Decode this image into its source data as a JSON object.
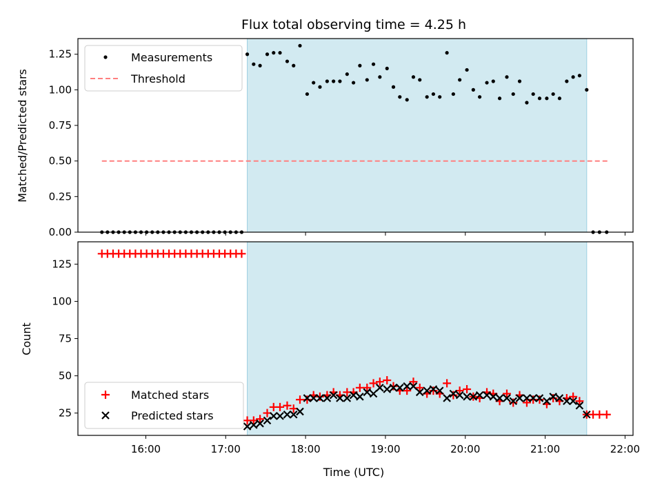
{
  "chart_data": [
    {
      "type": "scatter",
      "title": "Flux total observing time = 4.25 h",
      "xlabel": "",
      "ylabel": "Matched/Predicted stars",
      "ylim": [
        0,
        1.36
      ],
      "xlim": [
        15.15,
        22.1
      ],
      "yticks": [
        0,
        0.25,
        0.5,
        0.75,
        1.0,
        1.25
      ],
      "ytick_labels": [
        "0.00",
        "0.25",
        "0.50",
        "0.75",
        "1.00",
        "1.25"
      ],
      "shaded_interval": [
        17.27,
        21.52
      ],
      "legend_position": "top-left",
      "threshold": {
        "name": "Threshold",
        "color": "#ff7f7f",
        "value": 0.5,
        "x": [
          15.45,
          21.78
        ]
      },
      "series": [
        {
          "name": "Measurements",
          "color": "#000000",
          "points": [
            [
              15.45,
              0
            ],
            [
              15.52,
              0
            ],
            [
              15.59,
              0
            ],
            [
              15.66,
              0
            ],
            [
              15.73,
              0
            ],
            [
              15.8,
              0
            ],
            [
              15.87,
              0
            ],
            [
              15.94,
              0
            ],
            [
              16.01,
              0
            ],
            [
              16.08,
              0
            ],
            [
              16.15,
              0
            ],
            [
              16.22,
              0
            ],
            [
              16.29,
              0
            ],
            [
              16.36,
              0
            ],
            [
              16.43,
              0
            ],
            [
              16.5,
              0
            ],
            [
              16.57,
              0
            ],
            [
              16.64,
              0
            ],
            [
              16.71,
              0
            ],
            [
              16.78,
              0
            ],
            [
              16.85,
              0
            ],
            [
              16.92,
              0
            ],
            [
              16.99,
              0
            ],
            [
              17.06,
              0
            ],
            [
              17.13,
              0
            ],
            [
              17.2,
              0
            ],
            [
              17.27,
              1.25
            ],
            [
              17.35,
              1.18
            ],
            [
              17.43,
              1.17
            ],
            [
              17.52,
              1.25
            ],
            [
              17.6,
              1.26
            ],
            [
              17.68,
              1.26
            ],
            [
              17.77,
              1.2
            ],
            [
              17.85,
              1.17
            ],
            [
              17.93,
              1.31
            ],
            [
              18.02,
              0.97
            ],
            [
              18.1,
              1.05
            ],
            [
              18.18,
              1.02
            ],
            [
              18.27,
              1.06
            ],
            [
              18.35,
              1.06
            ],
            [
              18.43,
              1.06
            ],
            [
              18.52,
              1.11
            ],
            [
              18.6,
              1.05
            ],
            [
              18.68,
              1.17
            ],
            [
              18.77,
              1.07
            ],
            [
              18.85,
              1.18
            ],
            [
              18.93,
              1.09
            ],
            [
              19.02,
              1.15
            ],
            [
              19.1,
              1.02
            ],
            [
              19.18,
              0.95
            ],
            [
              19.27,
              0.93
            ],
            [
              19.35,
              1.09
            ],
            [
              19.43,
              1.07
            ],
            [
              19.52,
              0.95
            ],
            [
              19.6,
              0.97
            ],
            [
              19.68,
              0.95
            ],
            [
              19.77,
              1.26
            ],
            [
              19.85,
              0.97
            ],
            [
              19.93,
              1.07
            ],
            [
              20.02,
              1.14
            ],
            [
              20.1,
              1.0
            ],
            [
              20.18,
              0.95
            ],
            [
              20.27,
              1.05
            ],
            [
              20.35,
              1.06
            ],
            [
              20.43,
              0.94
            ],
            [
              20.52,
              1.09
            ],
            [
              20.6,
              0.97
            ],
            [
              20.68,
              1.06
            ],
            [
              20.77,
              0.91
            ],
            [
              20.85,
              0.97
            ],
            [
              20.93,
              0.94
            ],
            [
              21.02,
              0.94
            ],
            [
              21.1,
              0.97
            ],
            [
              21.18,
              0.94
            ],
            [
              21.27,
              1.06
            ],
            [
              21.35,
              1.09
            ],
            [
              21.43,
              1.1
            ],
            [
              21.52,
              1.0
            ],
            [
              21.6,
              0
            ],
            [
              21.68,
              0
            ],
            [
              21.77,
              0
            ]
          ]
        }
      ]
    },
    {
      "type": "scatter",
      "title": "",
      "xlabel": "Time (UTC)",
      "ylabel": "Count",
      "ylim": [
        10,
        140
      ],
      "xlim": [
        15.15,
        22.1
      ],
      "yticks": [
        25,
        50,
        75,
        100,
        125
      ],
      "ytick_labels": [
        "25",
        "50",
        "75",
        "100",
        "125"
      ],
      "xticks": [
        16,
        17,
        18,
        19,
        20,
        21,
        22
      ],
      "xtick_labels": [
        "16:00",
        "17:00",
        "18:00",
        "19:00",
        "20:00",
        "21:00",
        "22:00"
      ],
      "shaded_interval": [
        17.27,
        21.52
      ],
      "legend_position": "bottom-left",
      "series": [
        {
          "name": "Matched stars",
          "marker": "+",
          "color": "#ff0000",
          "points": [
            [
              15.45,
              132
            ],
            [
              15.52,
              132
            ],
            [
              15.59,
              132
            ],
            [
              15.66,
              132
            ],
            [
              15.73,
              132
            ],
            [
              15.8,
              132
            ],
            [
              15.87,
              132
            ],
            [
              15.94,
              132
            ],
            [
              16.01,
              132
            ],
            [
              16.08,
              132
            ],
            [
              16.15,
              132
            ],
            [
              16.22,
              132
            ],
            [
              16.29,
              132
            ],
            [
              16.36,
              132
            ],
            [
              16.43,
              132
            ],
            [
              16.5,
              132
            ],
            [
              16.57,
              132
            ],
            [
              16.64,
              132
            ],
            [
              16.71,
              132
            ],
            [
              16.78,
              132
            ],
            [
              16.85,
              132
            ],
            [
              16.92,
              132
            ],
            [
              16.99,
              132
            ],
            [
              17.06,
              132
            ],
            [
              17.13,
              132
            ],
            [
              17.2,
              132
            ],
            [
              17.27,
              20
            ],
            [
              17.35,
              20
            ],
            [
              17.43,
              21
            ],
            [
              17.52,
              25
            ],
            [
              17.6,
              29
            ],
            [
              17.68,
              29
            ],
            [
              17.77,
              30
            ],
            [
              17.85,
              28
            ],
            [
              17.93,
              34
            ],
            [
              18.02,
              34
            ],
            [
              18.1,
              37
            ],
            [
              18.18,
              36
            ],
            [
              18.27,
              37
            ],
            [
              18.35,
              39
            ],
            [
              18.43,
              37
            ],
            [
              18.52,
              39
            ],
            [
              18.6,
              39
            ],
            [
              18.68,
              42
            ],
            [
              18.77,
              42
            ],
            [
              18.85,
              45
            ],
            [
              18.93,
              46
            ],
            [
              19.02,
              47
            ],
            [
              19.1,
              43
            ],
            [
              19.18,
              40
            ],
            [
              19.27,
              40
            ],
            [
              19.35,
              46
            ],
            [
              19.43,
              42
            ],
            [
              19.52,
              38
            ],
            [
              19.6,
              40
            ],
            [
              19.68,
              38
            ],
            [
              19.77,
              45
            ],
            [
              19.85,
              37
            ],
            [
              19.93,
              40
            ],
            [
              20.02,
              41
            ],
            [
              20.1,
              36
            ],
            [
              20.18,
              35
            ],
            [
              20.27,
              39
            ],
            [
              20.35,
              38
            ],
            [
              20.43,
              33
            ],
            [
              20.52,
              38
            ],
            [
              20.6,
              32
            ],
            [
              20.68,
              37
            ],
            [
              20.77,
              32
            ],
            [
              20.85,
              34
            ],
            [
              20.93,
              34
            ],
            [
              21.02,
              31
            ],
            [
              21.1,
              35
            ],
            [
              21.18,
              33
            ],
            [
              21.27,
              35
            ],
            [
              21.35,
              36
            ],
            [
              21.43,
              33
            ],
            [
              21.52,
              24
            ],
            [
              21.6,
              24
            ],
            [
              21.68,
              24
            ],
            [
              21.77,
              24
            ]
          ]
        },
        {
          "name": "Predicted stars",
          "marker": "x",
          "color": "#000000",
          "points": [
            [
              17.27,
              16
            ],
            [
              17.35,
              17
            ],
            [
              17.43,
              18
            ],
            [
              17.52,
              20
            ],
            [
              17.6,
              23
            ],
            [
              17.68,
              23
            ],
            [
              17.77,
              24
            ],
            [
              17.85,
              24
            ],
            [
              17.93,
              26
            ],
            [
              18.02,
              35
            ],
            [
              18.1,
              35
            ],
            [
              18.18,
              35
            ],
            [
              18.27,
              35
            ],
            [
              18.35,
              37
            ],
            [
              18.43,
              35
            ],
            [
              18.52,
              35
            ],
            [
              18.6,
              37
            ],
            [
              18.68,
              36
            ],
            [
              18.77,
              39
            ],
            [
              18.85,
              38
            ],
            [
              18.93,
              42
            ],
            [
              19.02,
              41
            ],
            [
              19.1,
              42
            ],
            [
              19.18,
              42
            ],
            [
              19.27,
              43
            ],
            [
              19.35,
              43
            ],
            [
              19.43,
              39
            ],
            [
              19.52,
              40
            ],
            [
              19.6,
              41
            ],
            [
              19.68,
              40
            ],
            [
              19.77,
              35
            ],
            [
              19.85,
              38
            ],
            [
              19.93,
              37
            ],
            [
              20.02,
              36
            ],
            [
              20.1,
              36
            ],
            [
              20.18,
              37
            ],
            [
              20.27,
              37
            ],
            [
              20.35,
              36
            ],
            [
              20.43,
              35
            ],
            [
              20.52,
              35
            ],
            [
              20.6,
              33
            ],
            [
              20.68,
              35
            ],
            [
              20.77,
              35
            ],
            [
              20.85,
              35
            ],
            [
              20.93,
              35
            ],
            [
              21.02,
              33
            ],
            [
              21.1,
              36
            ],
            [
              21.18,
              35
            ],
            [
              21.27,
              33
            ],
            [
              21.35,
              33
            ],
            [
              21.43,
              30
            ],
            [
              21.52,
              24
            ]
          ]
        }
      ]
    }
  ],
  "styles": {
    "shade_color": "#add8e6",
    "shade_edge": "#9ccfe0"
  }
}
